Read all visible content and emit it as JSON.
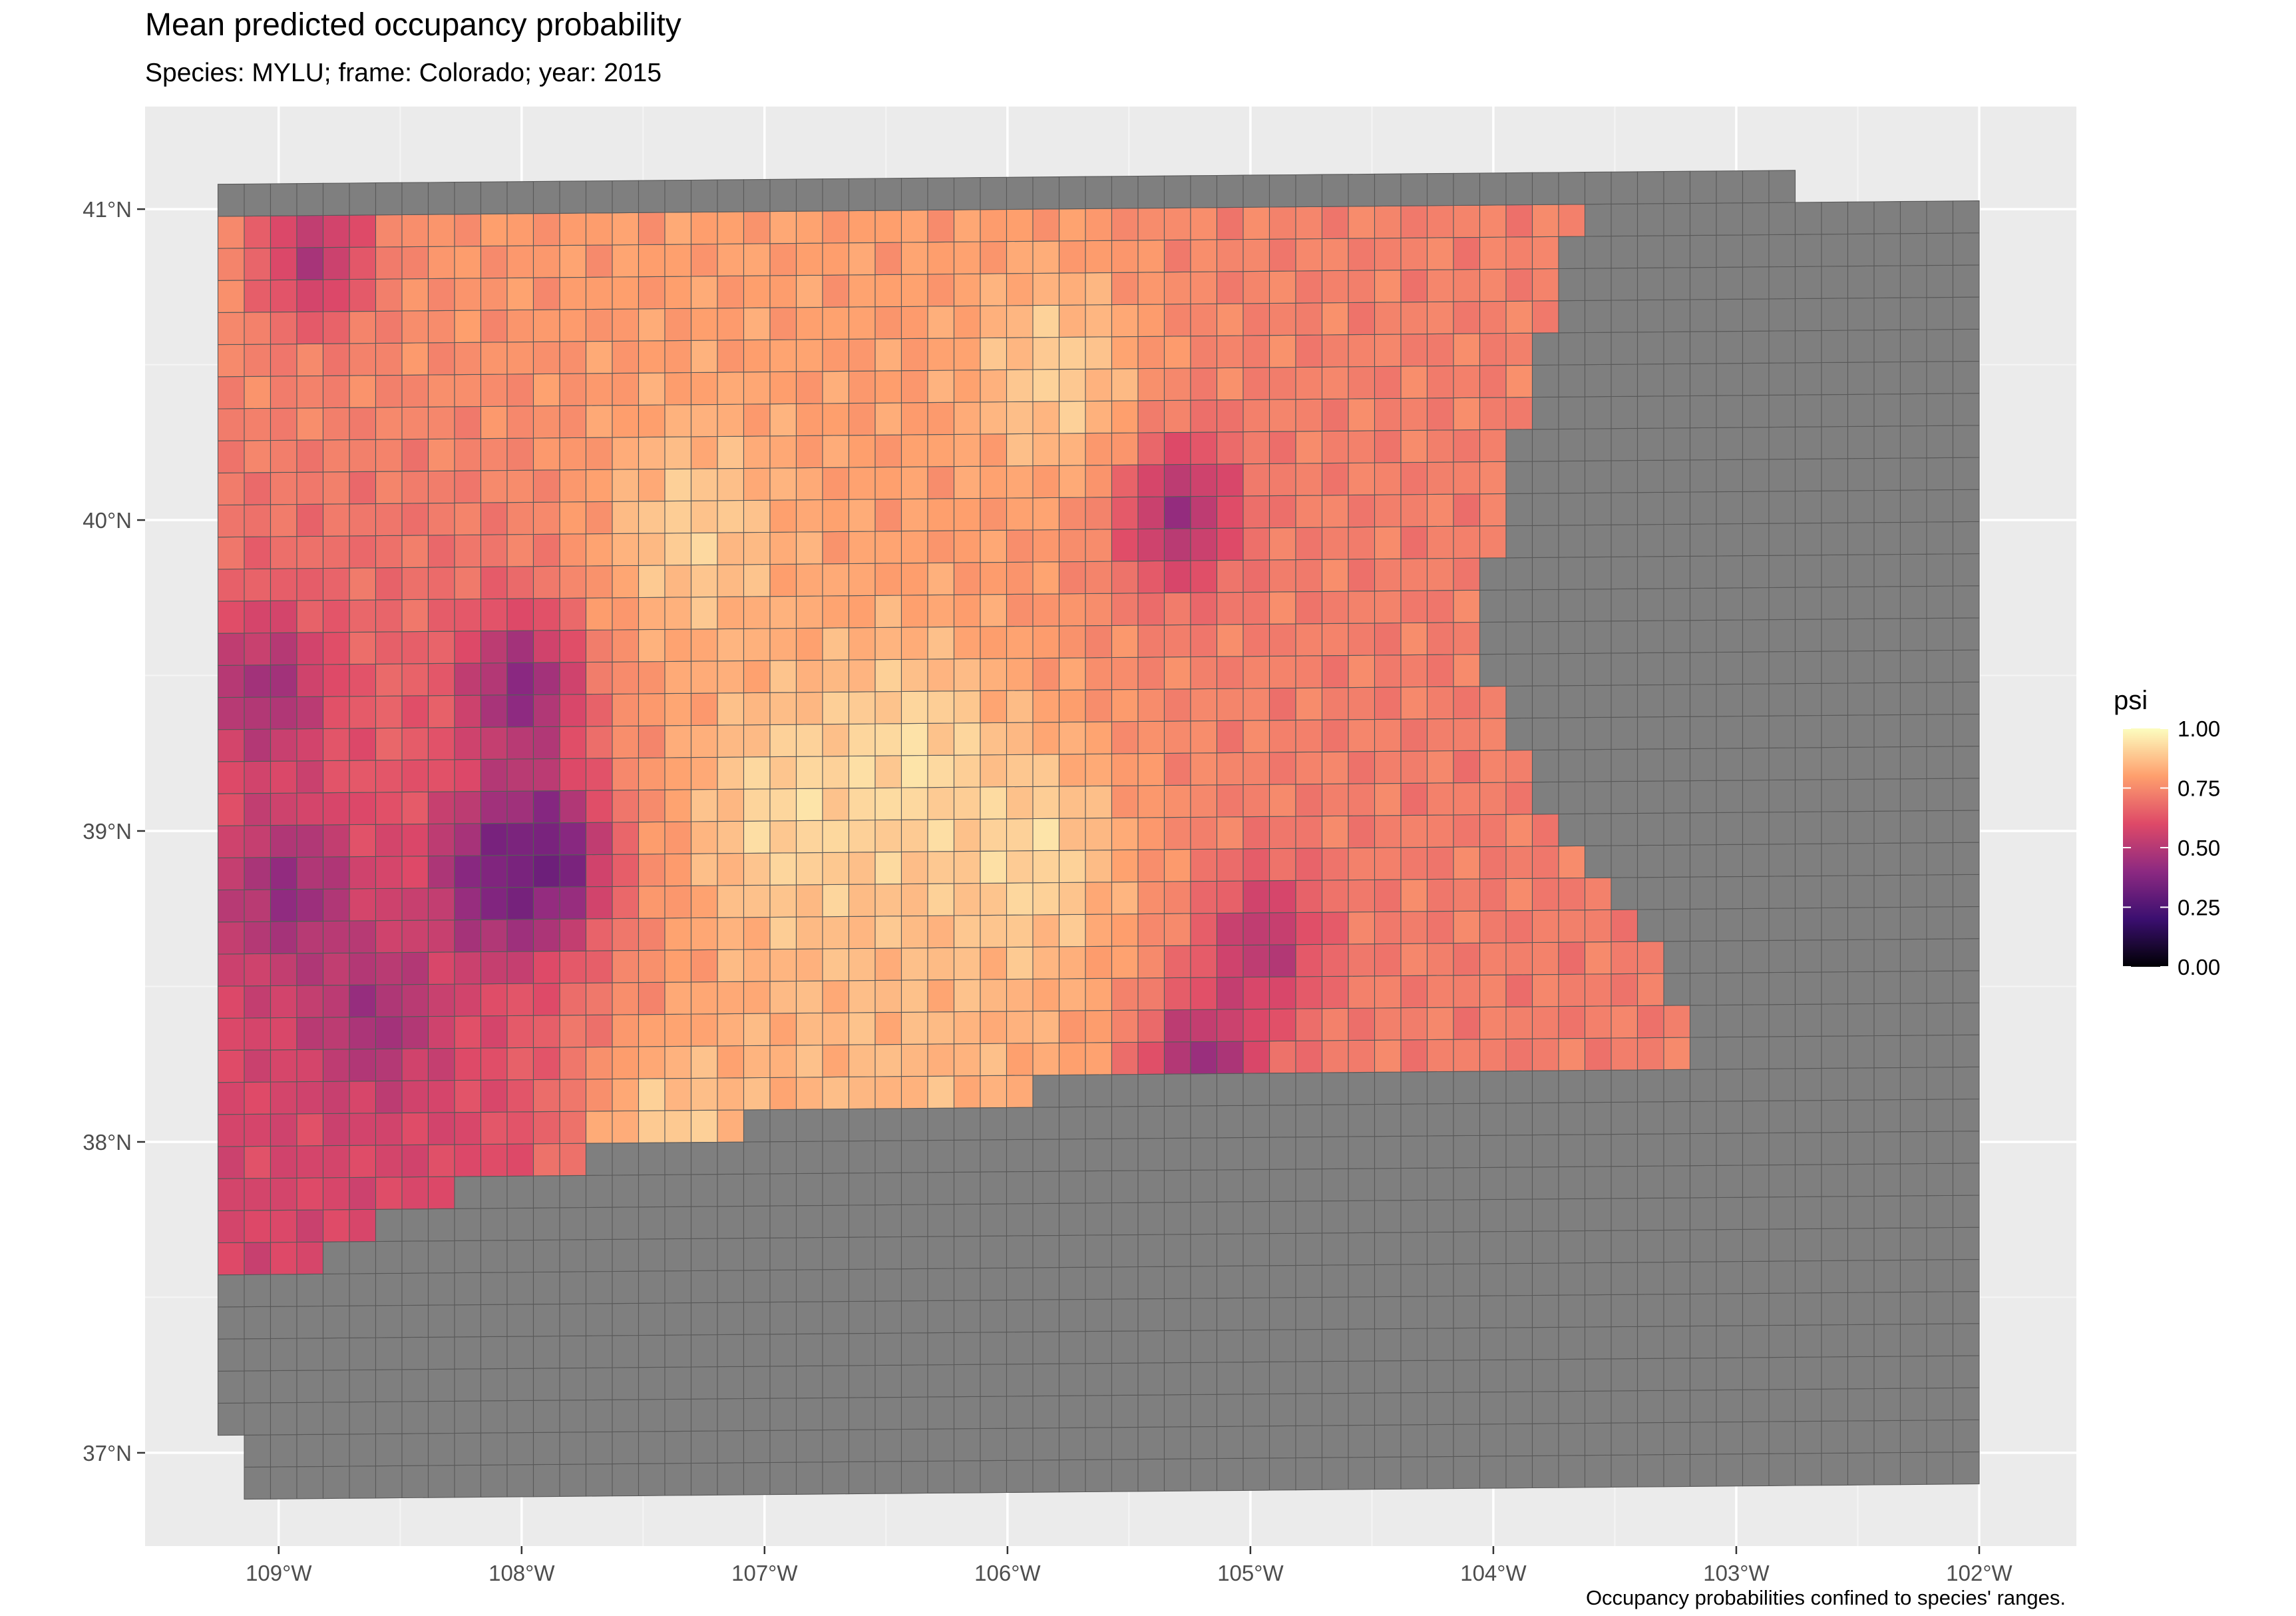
{
  "title": "Mean predicted occupancy probability",
  "subtitle": "Species: MYLU; frame: Colorado; year: 2015",
  "caption": "Occupancy probabilities confined to species' ranges.",
  "colors": {
    "panel_bg": "#ebebeb",
    "gridline": "#ffffff",
    "out_of_range_fill": "#7f7f7f",
    "cell_border": "#595959",
    "palette": "magma",
    "palette_stops": [
      "#000004",
      "#3b0f70",
      "#8c2981",
      "#de4968",
      "#fe9f6d",
      "#fcfdbf"
    ]
  },
  "chart_data": {
    "type": "heatmap",
    "geometry": "sampling grid cells (choropleth map)",
    "fill_variable": "psi",
    "x_axis": {
      "label": "",
      "range": [
        -109.55,
        -101.6
      ],
      "ticks": [
        -109,
        -108,
        -107,
        -106,
        -105,
        -104,
        -103,
        -102
      ],
      "tick_labels": [
        "109°W",
        "108°W",
        "107°W",
        "106°W",
        "105°W",
        "104°W",
        "103°W",
        "102°W"
      ]
    },
    "y_axis": {
      "label": "",
      "range": [
        36.7,
        41.33
      ],
      "ticks": [
        37,
        38,
        39,
        40,
        41
      ],
      "tick_labels": [
        "37°N",
        "38°N",
        "39°N",
        "40°N",
        "41°N"
      ]
    },
    "grid": true,
    "legend": {
      "title": "psi",
      "position": "right",
      "range": [
        0,
        1
      ],
      "breaks": [
        0,
        0.25,
        0.5,
        0.75,
        1
      ],
      "break_labels": [
        "0.00",
        "0.25",
        "0.50",
        "0.75",
        "1.00"
      ]
    },
    "grid_cells": {
      "n_cols": 67,
      "n_rows": 41
    },
    "colored_region_boundary": {
      "description": "Cells inside the species range are colored by psi; cells outside are grey.",
      "east_edge": [
        [
          41.0,
          -103.6
        ],
        [
          40.8,
          -103.7
        ],
        [
          40.5,
          -103.8
        ],
        [
          40.2,
          -103.9
        ],
        [
          39.9,
          -104.0
        ],
        [
          39.5,
          -104.05
        ],
        [
          39.0,
          -103.8
        ],
        [
          38.9,
          -103.6
        ],
        [
          38.7,
          -103.45
        ],
        [
          38.5,
          -103.3
        ],
        [
          38.3,
          -103.2
        ],
        [
          38.1,
          -103.2
        ]
      ],
      "south_edge": [
        [
          -109.2,
          37.55
        ],
        [
          -108.9,
          37.6
        ],
        [
          -108.6,
          37.75
        ],
        [
          -108.2,
          37.85
        ],
        [
          -107.7,
          37.95
        ],
        [
          -107.0,
          38.05
        ],
        [
          -106.4,
          38.1
        ],
        [
          -105.8,
          38.15
        ],
        [
          -105.1,
          38.2
        ],
        [
          -104.2,
          38.2
        ],
        [
          -103.2,
          38.2
        ]
      ]
    },
    "regional_mean_psi": [
      {
        "area": "north-west",
        "lon": [
          -109.2,
          -108.0
        ],
        "lat": [
          40.3,
          41.0
        ],
        "psi": 0.78
      },
      {
        "area": "north-central",
        "lon": [
          -108.0,
          -105.7
        ],
        "lat": [
          40.3,
          41.0
        ],
        "psi": 0.8
      },
      {
        "area": "north-east",
        "lon": [
          -105.7,
          -103.6
        ],
        "lat": [
          40.3,
          41.0
        ],
        "psi": 0.73
      },
      {
        "area": "west-central",
        "lon": [
          -109.2,
          -108.0
        ],
        "lat": [
          39.3,
          40.3
        ],
        "psi": 0.67
      },
      {
        "area": "central",
        "lon": [
          -108.0,
          -105.7
        ],
        "lat": [
          39.3,
          40.3
        ],
        "psi": 0.8
      },
      {
        "area": "east-central",
        "lon": [
          -105.7,
          -104.0
        ],
        "lat": [
          39.3,
          40.3
        ],
        "psi": 0.72
      },
      {
        "area": "south-west",
        "lon": [
          -109.2,
          -107.6
        ],
        "lat": [
          37.6,
          39.3
        ],
        "psi": 0.58
      },
      {
        "area": "san-luis-and-central-mountains",
        "lon": [
          -107.6,
          -105.7
        ],
        "lat": [
          38.1,
          39.3
        ],
        "psi": 0.87
      },
      {
        "area": "south-east",
        "lon": [
          -105.7,
          -103.2
        ],
        "lat": [
          38.2,
          39.3
        ],
        "psi": 0.72
      }
    ],
    "low_psi_hotspots": [
      {
        "lon": -108.0,
        "lat": 39.45,
        "psi": 0.4
      },
      {
        "lon": -107.9,
        "lat": 38.9,
        "psi": 0.3
      },
      {
        "lon": -108.1,
        "lat": 38.85,
        "psi": 0.35
      },
      {
        "lon": -108.95,
        "lat": 38.8,
        "psi": 0.42
      },
      {
        "lon": -109.05,
        "lat": 39.45,
        "psi": 0.45
      },
      {
        "lon": -105.3,
        "lat": 40.0,
        "psi": 0.45
      },
      {
        "lon": -105.2,
        "lat": 38.2,
        "psi": 0.42
      },
      {
        "lon": -104.95,
        "lat": 38.6,
        "psi": 0.5
      },
      {
        "lon": -108.6,
        "lat": 38.4,
        "psi": 0.45
      },
      {
        "lon": -108.85,
        "lat": 40.85,
        "psi": 0.5
      }
    ],
    "high_psi_areas": [
      {
        "lon": -107.3,
        "lat": 39.95,
        "psi": 0.9
      },
      {
        "lon": -106.9,
        "lat": 39.05,
        "psi": 0.92
      },
      {
        "lon": -106.4,
        "lat": 39.2,
        "psi": 0.93
      },
      {
        "lon": -105.9,
        "lat": 38.9,
        "psi": 0.92
      },
      {
        "lon": -105.8,
        "lat": 40.45,
        "psi": 0.9
      },
      {
        "lon": -107.4,
        "lat": 38.0,
        "psi": 0.9
      }
    ]
  }
}
